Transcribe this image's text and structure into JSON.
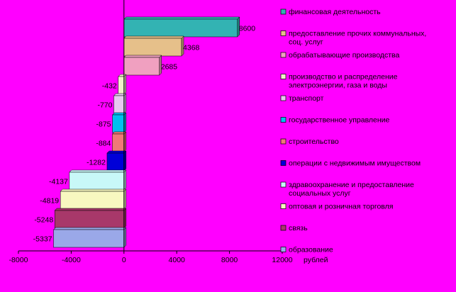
{
  "chart_data": {
    "type": "bar",
    "orientation": "horizontal",
    "unit_label": "рублей",
    "xlim": [
      -8000,
      12000
    ],
    "x_ticks": [
      -8000,
      -4000,
      0,
      4000,
      8000,
      12000
    ],
    "grid": false,
    "legend_position": "right",
    "series": [
      {
        "name": "финансовая деятельность",
        "value": 8600,
        "color": "#33b3b3"
      },
      {
        "name": "предоставление прочих коммунальных, соц. услуг",
        "value": 4368,
        "color": "#e6c08a"
      },
      {
        "name": "обрабатывающие производства",
        "value": 2685,
        "color": "#f0a0c0"
      },
      {
        "name": "производство и распределение электроэнергии, газа и воды",
        "value": -432,
        "color": "#f0f0c8"
      },
      {
        "name": "транспорт",
        "value": -770,
        "color": "#e8c8f0"
      },
      {
        "name": "государственное управление",
        "value": -875,
        "color": "#00c0f0"
      },
      {
        "name": "строительство",
        "value": -884,
        "color": "#f07878"
      },
      {
        "name": "операции с недвижимым имуществом",
        "value": -1282,
        "color": "#0000d8"
      },
      {
        "name": "здравоохранение и предоставление социальных услуг",
        "value": -4137,
        "color": "#c8f8f8"
      },
      {
        "name": "оптовая и розничная торговля",
        "value": -4819,
        "color": "#f8f8c0"
      },
      {
        "name": "связь",
        "value": -5248,
        "color": "#a8386a"
      },
      {
        "name": "образование",
        "value": -5337,
        "color": "#9aa8e8"
      }
    ]
  }
}
